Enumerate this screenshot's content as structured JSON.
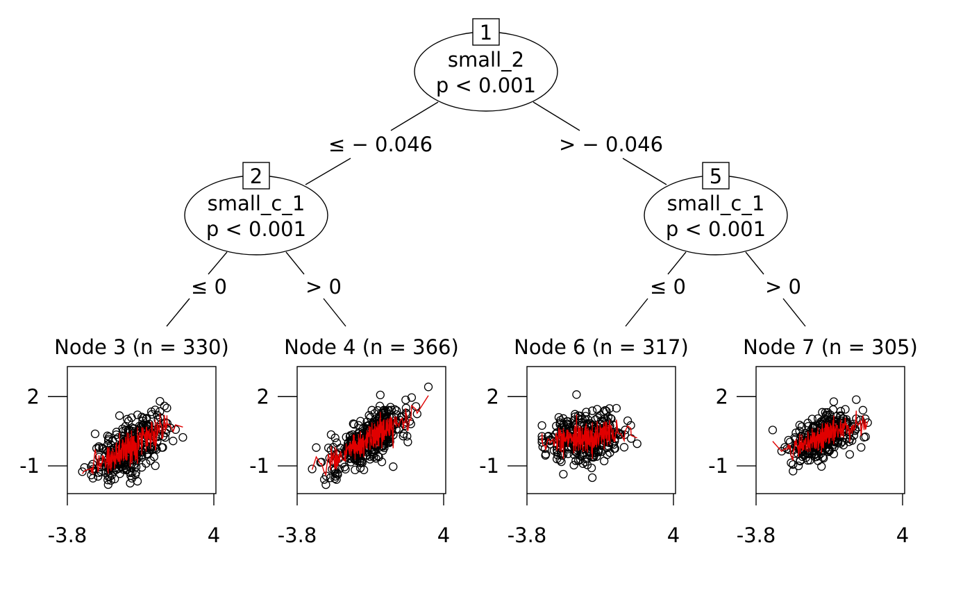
{
  "colors": {
    "background": "#ffffff",
    "ink": "#000000",
    "fit_line": "#e00000"
  },
  "tree": {
    "inner_nodes": [
      {
        "id": "1",
        "variable": "small_2",
        "pvalue": "p < 0.001"
      },
      {
        "id": "2",
        "variable": "small_c_1",
        "pvalue": "p < 0.001"
      },
      {
        "id": "5",
        "variable": "small_c_1",
        "pvalue": "p < 0.001"
      }
    ],
    "edges": [
      {
        "label": "≤ − 0.046"
      },
      {
        "label": "> − 0.046"
      },
      {
        "label": "≤ 0"
      },
      {
        "label": "> 0"
      },
      {
        "label": "≤ 0"
      },
      {
        "label": "> 0"
      }
    ],
    "terminal_nodes": [
      {
        "title": "Node 3 (n = 330)"
      },
      {
        "title": "Node 4 (n = 366)"
      },
      {
        "title": "Node 6 (n = 317)"
      },
      {
        "title": "Node 7 (n = 305)"
      }
    ]
  },
  "chart_data": [
    {
      "type": "scatter",
      "title": "Node 3 (n = 330)",
      "n": 330,
      "xlim": [
        -3.8,
        4
      ],
      "ylim": [
        -2.2,
        3.3
      ],
      "x_ticks": [
        "-3.8",
        "4"
      ],
      "y_ticks": [
        "2",
        "-1"
      ],
      "cloud": {
        "x_center": -0.5,
        "x_sd": 0.95,
        "slope": 0.5,
        "intercept": 0.05,
        "noise_sd": 0.55
      },
      "series": [
        {
          "style": "circles",
          "color": "#000000"
        },
        {
          "style": "fitted-line",
          "color": "#e00000"
        }
      ]
    },
    {
      "type": "scatter",
      "title": "Node 4 (n = 366)",
      "n": 366,
      "xlim": [
        -3.8,
        4
      ],
      "ylim": [
        -2.2,
        3.3
      ],
      "x_ticks": [
        "-3.8",
        "4"
      ],
      "y_ticks": [
        "2",
        "-1"
      ],
      "cloud": {
        "x_center": 0.0,
        "x_sd": 1.05,
        "slope": 0.45,
        "intercept": 0.15,
        "noise_sd": 0.5
      },
      "series": [
        {
          "style": "circles",
          "color": "#000000"
        },
        {
          "style": "fitted-line",
          "color": "#e00000"
        }
      ]
    },
    {
      "type": "scatter",
      "title": "Node 6 (n = 317)",
      "n": 317,
      "xlim": [
        -3.8,
        4
      ],
      "ylim": [
        -2.2,
        3.3
      ],
      "x_ticks": [
        "-3.8",
        "4"
      ],
      "y_ticks": [
        "2",
        "-1"
      ],
      "cloud": {
        "x_center": -0.6,
        "x_sd": 1.05,
        "slope": 0.1,
        "intercept": 0.3,
        "noise_sd": 0.55
      },
      "series": [
        {
          "style": "circles",
          "color": "#000000"
        },
        {
          "style": "fitted-line",
          "color": "#e00000"
        }
      ]
    },
    {
      "type": "scatter",
      "title": "Node 7 (n = 305)",
      "n": 305,
      "xlim": [
        -3.8,
        4
      ],
      "ylim": [
        -2.2,
        3.3
      ],
      "x_ticks": [
        "-3.8",
        "4"
      ],
      "y_ticks": [
        "2",
        "-1"
      ],
      "cloud": {
        "x_center": -0.2,
        "x_sd": 0.95,
        "slope": 0.3,
        "intercept": 0.35,
        "noise_sd": 0.5
      },
      "series": [
        {
          "style": "circles",
          "color": "#000000"
        },
        {
          "style": "fitted-line",
          "color": "#e00000"
        }
      ]
    }
  ]
}
